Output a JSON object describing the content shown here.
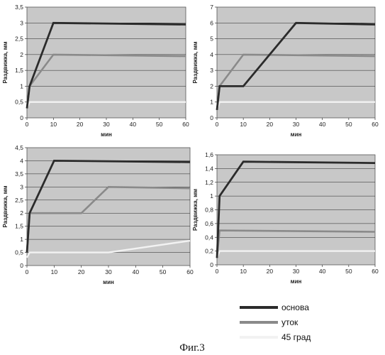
{
  "legend": [
    {
      "name": "основа",
      "color": "#2b2b2b"
    },
    {
      "name": "уток",
      "color": "#8a8a8a"
    },
    {
      "name": "45 град",
      "color": "#f2f2f2"
    }
  ],
  "caption": "Фиг.3",
  "chart_data": [
    {
      "type": "line",
      "title": "",
      "xlabel": "мин",
      "ylabel": "Раздвижка, мм",
      "xlim": [
        0,
        60
      ],
      "ylim": [
        0,
        3.5
      ],
      "xticks": [
        0,
        10,
        20,
        30,
        40,
        50,
        60
      ],
      "yticks": [
        0,
        0.5,
        1,
        1.5,
        2,
        2.5,
        3,
        3.5
      ],
      "ytick_labels": [
        "0",
        "0,5",
        "1",
        "1,5",
        "2",
        "2,5",
        "3",
        "3,5"
      ],
      "grid": true,
      "series": [
        {
          "name": "основа",
          "points": [
            [
              0,
              0.3
            ],
            [
              1,
              1
            ],
            [
              10,
              3
            ],
            [
              60,
              2.95
            ]
          ]
        },
        {
          "name": "уток",
          "points": [
            [
              0,
              0.3
            ],
            [
              1,
              1
            ],
            [
              10,
              2
            ],
            [
              60,
              1.95
            ]
          ]
        },
        {
          "name": "45 град",
          "points": [
            [
              0,
              0.3
            ],
            [
              1,
              0.5
            ],
            [
              60,
              0.5
            ]
          ]
        }
      ]
    },
    {
      "type": "line",
      "title": "",
      "xlabel": "мин",
      "ylabel": "Раздвижка, мм",
      "xlim": [
        0,
        60
      ],
      "ylim": [
        0,
        7
      ],
      "xticks": [
        0,
        10,
        20,
        30,
        40,
        50,
        60
      ],
      "yticks": [
        0,
        1,
        2,
        3,
        4,
        5,
        6,
        7
      ],
      "ytick_labels": [
        "0",
        "1",
        "2",
        "3",
        "4",
        "5",
        "6",
        "7"
      ],
      "grid": true,
      "series": [
        {
          "name": "основа",
          "points": [
            [
              0,
              0.5
            ],
            [
              1,
              2
            ],
            [
              10,
              2
            ],
            [
              30,
              6
            ],
            [
              60,
              5.9
            ]
          ]
        },
        {
          "name": "уток",
          "points": [
            [
              0,
              0.5
            ],
            [
              1,
              2
            ],
            [
              10,
              4
            ],
            [
              60,
              3.9
            ]
          ]
        },
        {
          "name": "45 град",
          "points": [
            [
              0,
              0.5
            ],
            [
              1,
              1
            ],
            [
              60,
              1
            ]
          ]
        }
      ]
    },
    {
      "type": "line",
      "title": "",
      "xlabel": "мин",
      "ylabel": "Раздвижка, мм",
      "xlim": [
        0,
        60
      ],
      "ylim": [
        0,
        4.5
      ],
      "xticks": [
        0,
        10,
        20,
        30,
        40,
        50,
        60
      ],
      "yticks": [
        0,
        0.5,
        1,
        1.5,
        2,
        2.5,
        3,
        3.5,
        4,
        4.5
      ],
      "ytick_labels": [
        "0",
        "0,5",
        "1",
        "1,5",
        "2",
        "2,5",
        "3",
        "3,5",
        "4",
        "4,5"
      ],
      "grid": true,
      "series": [
        {
          "name": "основа",
          "points": [
            [
              0,
              0.5
            ],
            [
              1,
              2
            ],
            [
              10,
              4
            ],
            [
              60,
              3.95
            ]
          ]
        },
        {
          "name": "уток",
          "points": [
            [
              0,
              0.5
            ],
            [
              1,
              2
            ],
            [
              20,
              2
            ],
            [
              30,
              3
            ],
            [
              60,
              2.95
            ]
          ]
        },
        {
          "name": "45 град",
          "points": [
            [
              0,
              0.3
            ],
            [
              1,
              0.5
            ],
            [
              30,
              0.5
            ],
            [
              60,
              0.95
            ]
          ]
        }
      ]
    },
    {
      "type": "line",
      "title": "",
      "xlabel": "мин",
      "ylabel": "Раздвижка, мм",
      "xlim": [
        0,
        60
      ],
      "ylim": [
        0,
        1.6
      ],
      "xticks": [
        0,
        10,
        20,
        30,
        40,
        50,
        60
      ],
      "yticks": [
        0,
        0.2,
        0.4,
        0.6,
        0.8,
        1,
        1.2,
        1.4,
        1.6
      ],
      "ytick_labels": [
        "0",
        "0,2",
        "0,4",
        "0,6",
        "0,8",
        "1",
        "1,2",
        "1,4",
        "1,6"
      ],
      "grid": true,
      "series": [
        {
          "name": "основа",
          "points": [
            [
              0,
              0.1
            ],
            [
              1,
              1
            ],
            [
              10,
              1.5
            ],
            [
              60,
              1.48
            ]
          ]
        },
        {
          "name": "уток",
          "points": [
            [
              0,
              0.1
            ],
            [
              1,
              0.5
            ],
            [
              60,
              0.48
            ]
          ]
        },
        {
          "name": "45 град",
          "points": [
            [
              0,
              0.1
            ],
            [
              1,
              0.2
            ],
            [
              60,
              0.2
            ]
          ]
        }
      ]
    }
  ]
}
